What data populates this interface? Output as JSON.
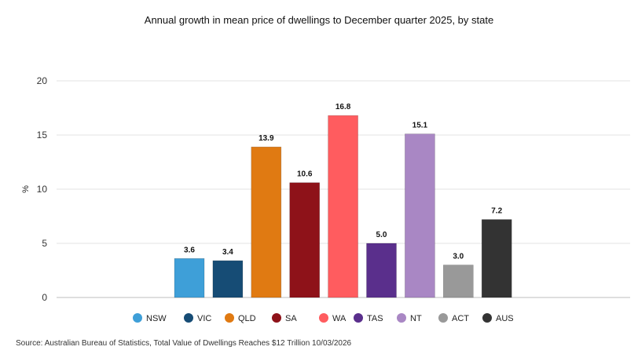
{
  "chart_data": {
    "type": "bar",
    "title": "Annual growth in mean price of dwellings to December quarter 2025, by state",
    "ylabel": "%",
    "ylim": [
      0,
      20
    ],
    "yticks": [
      0,
      5,
      10,
      15,
      20
    ],
    "grid": true,
    "legend_position": "bottom",
    "series": [
      {
        "name": "NSW",
        "value": 3.6,
        "label": "3.6",
        "color": "#3E9FD8"
      },
      {
        "name": "VIC",
        "value": 3.4,
        "label": "3.4",
        "color": "#164C75"
      },
      {
        "name": "QLD",
        "value": 13.9,
        "label": "13.9",
        "color": "#E07A12"
      },
      {
        "name": "SA",
        "value": 10.6,
        "label": "10.6",
        "color": "#8E1219"
      },
      {
        "name": "WA",
        "value": 16.8,
        "label": "16.8",
        "color": "#FF5C5F"
      },
      {
        "name": "TAS",
        "value": 5.0,
        "label": "5.0",
        "color": "#5A2F8C"
      },
      {
        "name": "NT",
        "value": 15.1,
        "label": "15.1",
        "color": "#A987C4"
      },
      {
        "name": "ACT",
        "value": 3.0,
        "label": "3.0",
        "color": "#999999"
      },
      {
        "name": "AUS",
        "value": 7.2,
        "label": "7.2",
        "color": "#333333"
      }
    ]
  },
  "source": "Source: Australian Bureau of Statistics, Total Value of Dwellings Reaches $12 Trillion 10/03/2026"
}
